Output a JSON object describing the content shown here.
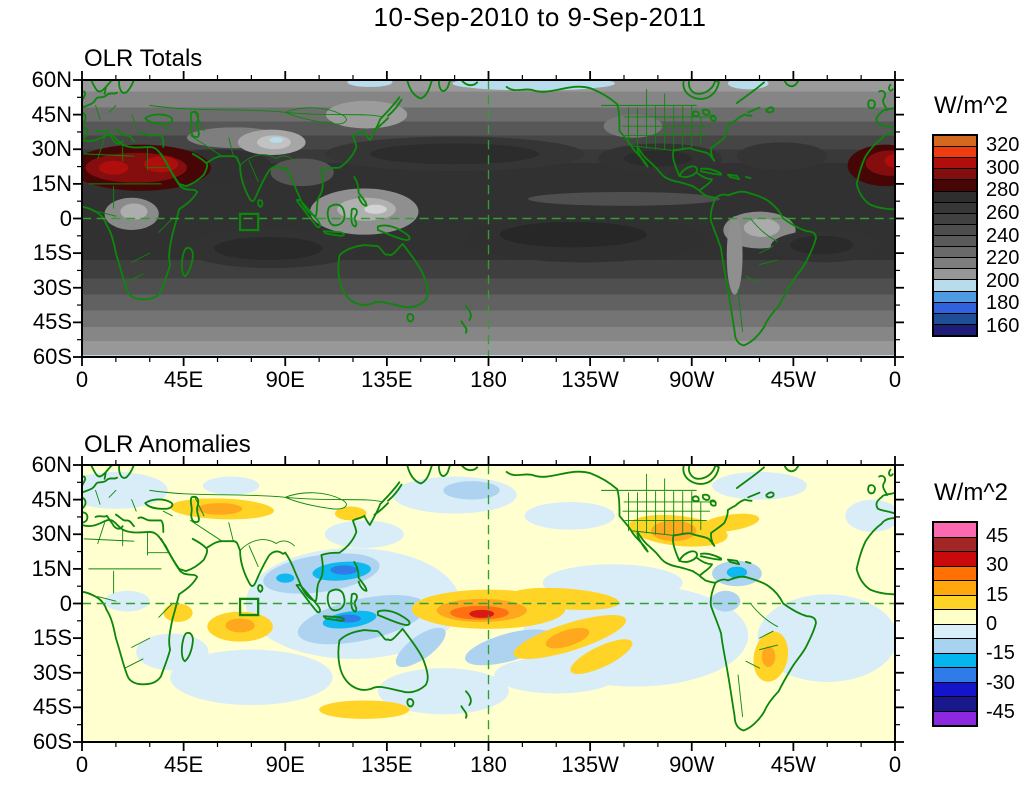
{
  "figure": {
    "title": "10-Sep-2010 to 9-Sep-2011",
    "background": "#ffffff"
  },
  "axes": {
    "x_labels": [
      "0",
      "45E",
      "90E",
      "135E",
      "180",
      "135W",
      "90W",
      "45W",
      "0"
    ],
    "y_labels": [
      "60N",
      "45N",
      "30N",
      "15N",
      "0",
      "15S",
      "30S",
      "45S",
      "60S"
    ]
  },
  "map_style": {
    "coastline_color": "#0c870c",
    "gridline_color": "#2fa02f",
    "gridlines": [
      "equator (dashed)",
      "180 meridian (dashed)"
    ],
    "annotation_box": {
      "lon": [
        70,
        78
      ],
      "lat": [
        -5,
        2
      ]
    }
  },
  "panels": [
    {
      "title": "OLR Totals",
      "colorbar": {
        "units": "W/m^2",
        "tick_values": [
          "320",
          "300",
          "280",
          "260",
          "240",
          "220",
          "200",
          "180",
          "160"
        ],
        "labeled_boundaries": [
          1,
          3,
          5,
          7,
          9,
          11,
          13,
          15,
          17
        ],
        "colors_top_to_bottom": [
          "#d2691e",
          "#ef3b10",
          "#b00d0d",
          "#840e0e",
          "#460606",
          "#2e2e2e",
          "#373737",
          "#414141",
          "#4d4d4d",
          "#5a5a5a",
          "#6a6a6a",
          "#7e7e7e",
          "#979797",
          "#b9dcec",
          "#4f9ae0",
          "#2f62dc",
          "#1e4f96",
          "#1d1d78"
        ]
      }
    },
    {
      "title": "OLR Anomalies",
      "colorbar": {
        "units": "W/m^2",
        "tick_values": [
          "45",
          "30",
          "15",
          "0",
          "-15",
          "-30",
          "-45"
        ],
        "labeled_boundaries": [
          1,
          3,
          5,
          7,
          9,
          11,
          13
        ],
        "colors_top_to_bottom": [
          "#fb6ab0",
          "#a32626",
          "#c80a0a",
          "#ff7005",
          "#ffa80d",
          "#ffd226",
          "#ffffc8",
          "#d8effa",
          "#a8d3f0",
          "#05b5f0",
          "#2f7be7",
          "#1414cc",
          "#18188c",
          "#8c28e0"
        ]
      }
    }
  ],
  "chart_data": [
    {
      "type": "heatmap",
      "subtype": "filled_contour_world_map",
      "title": "OLR Totals",
      "period": "10-Sep-2010 to 9-Sep-2011",
      "units": "W/m^2",
      "projection": "equirectangular",
      "lon_range_deg_east": [
        0,
        360
      ],
      "lat_range": [
        -60,
        60
      ],
      "x_tick_labels": [
        "0",
        "45E",
        "90E",
        "135E",
        "180",
        "135W",
        "90W",
        "45W",
        "0"
      ],
      "y_tick_labels": [
        "60N",
        "45N",
        "30N",
        "15N",
        "0",
        "15S",
        "30S",
        "45S",
        "60S"
      ],
      "contour_interval": 10,
      "colorbar_ticks": [
        320,
        300,
        280,
        260,
        240,
        220,
        200,
        180,
        160
      ],
      "legend_position": "right",
      "grid": "dashed equator and 180 meridian",
      "features": [
        {
          "region": "Sahara / Arabian Peninsula (0-55E, 12-30N)",
          "value": "290-315 W/m^2 maximum (dark red shades)"
        },
        {
          "region": "West Africa near 20N at right map edge",
          "value": "290-310 W/m^2 (dark red)"
        },
        {
          "region": "Subtropical ocean bands, both hemispheres",
          "value": "260-285 W/m^2 (darkest grays)"
        },
        {
          "region": "Central/South equatorial Pacific near dateline",
          "value": "270-285 W/m^2 (very dark, La Nina dryness)"
        },
        {
          "region": "Tibetan Plateau",
          "value": "200-220 W/m^2 (light gray, small spots under 200 pale blue)"
        },
        {
          "region": "Congo Basin, Maritime Continent, Amazon",
          "value": "210-230 W/m^2 (lighter gray convective areas)"
        },
        {
          "region": "Poleward edges at 60N and 60S",
          "value": "under 200 W/m^2 (pale blue strips)"
        }
      ]
    },
    {
      "type": "heatmap",
      "subtype": "filled_contour_world_map",
      "title": "OLR Anomalies",
      "period": "10-Sep-2010 to 9-Sep-2011",
      "units": "W/m^2",
      "projection": "equirectangular",
      "lon_range_deg_east": [
        0,
        360
      ],
      "lat_range": [
        -60,
        60
      ],
      "x_tick_labels": [
        "0",
        "45E",
        "90E",
        "135E",
        "180",
        "135W",
        "90W",
        "45W",
        "0"
      ],
      "y_tick_labels": [
        "60N",
        "45N",
        "30N",
        "15N",
        "0",
        "15S",
        "30S",
        "45S",
        "60S"
      ],
      "contour_interval": 7.5,
      "colorbar_ticks": [
        45,
        30,
        15,
        0,
        -15,
        -30,
        -45
      ],
      "legend_position": "right",
      "grid": "dashed equator and 180 meridian",
      "background_value": "0 to +7.5 pale yellow over most of the globe",
      "features": [
        {
          "region": "Equatorial Pacific just west of 180, ~3S",
          "value": "+30 to +45 W/m^2 (red core in orange/gold band 150E-155W)"
        },
        {
          "region": "SPCZ arm toward 140W, 15-20S",
          "value": "+15 to +30 W/m^2"
        },
        {
          "region": "Texas / Gulf of Mexico / southern US",
          "value": "+15 to +30 W/m^2"
        },
        {
          "region": "Central Asia near 40N, 45-75E",
          "value": "+7.5 to +22 W/m^2"
        },
        {
          "region": "Western Indian Ocean ~10S, 55-80E",
          "value": "+7.5 to +22 W/m^2"
        },
        {
          "region": "Bay of Bengal / South China Sea / Philippines",
          "value": "-15 to -37 W/m^2 (blue cores)"
        },
        {
          "region": "Indonesia / Java Sea / northern Australia",
          "value": "-15 to -37 W/m^2 (blue cores)"
        },
        {
          "region": "Caribbean near 70W, 12N",
          "value": "-7.5 to -22 W/m^2"
        },
        {
          "region": "Broad eastern Pacific, South Atlantic, south Indian Ocean",
          "value": "0 to -7.5 W/m^2 (pale blue)"
        }
      ]
    }
  ]
}
